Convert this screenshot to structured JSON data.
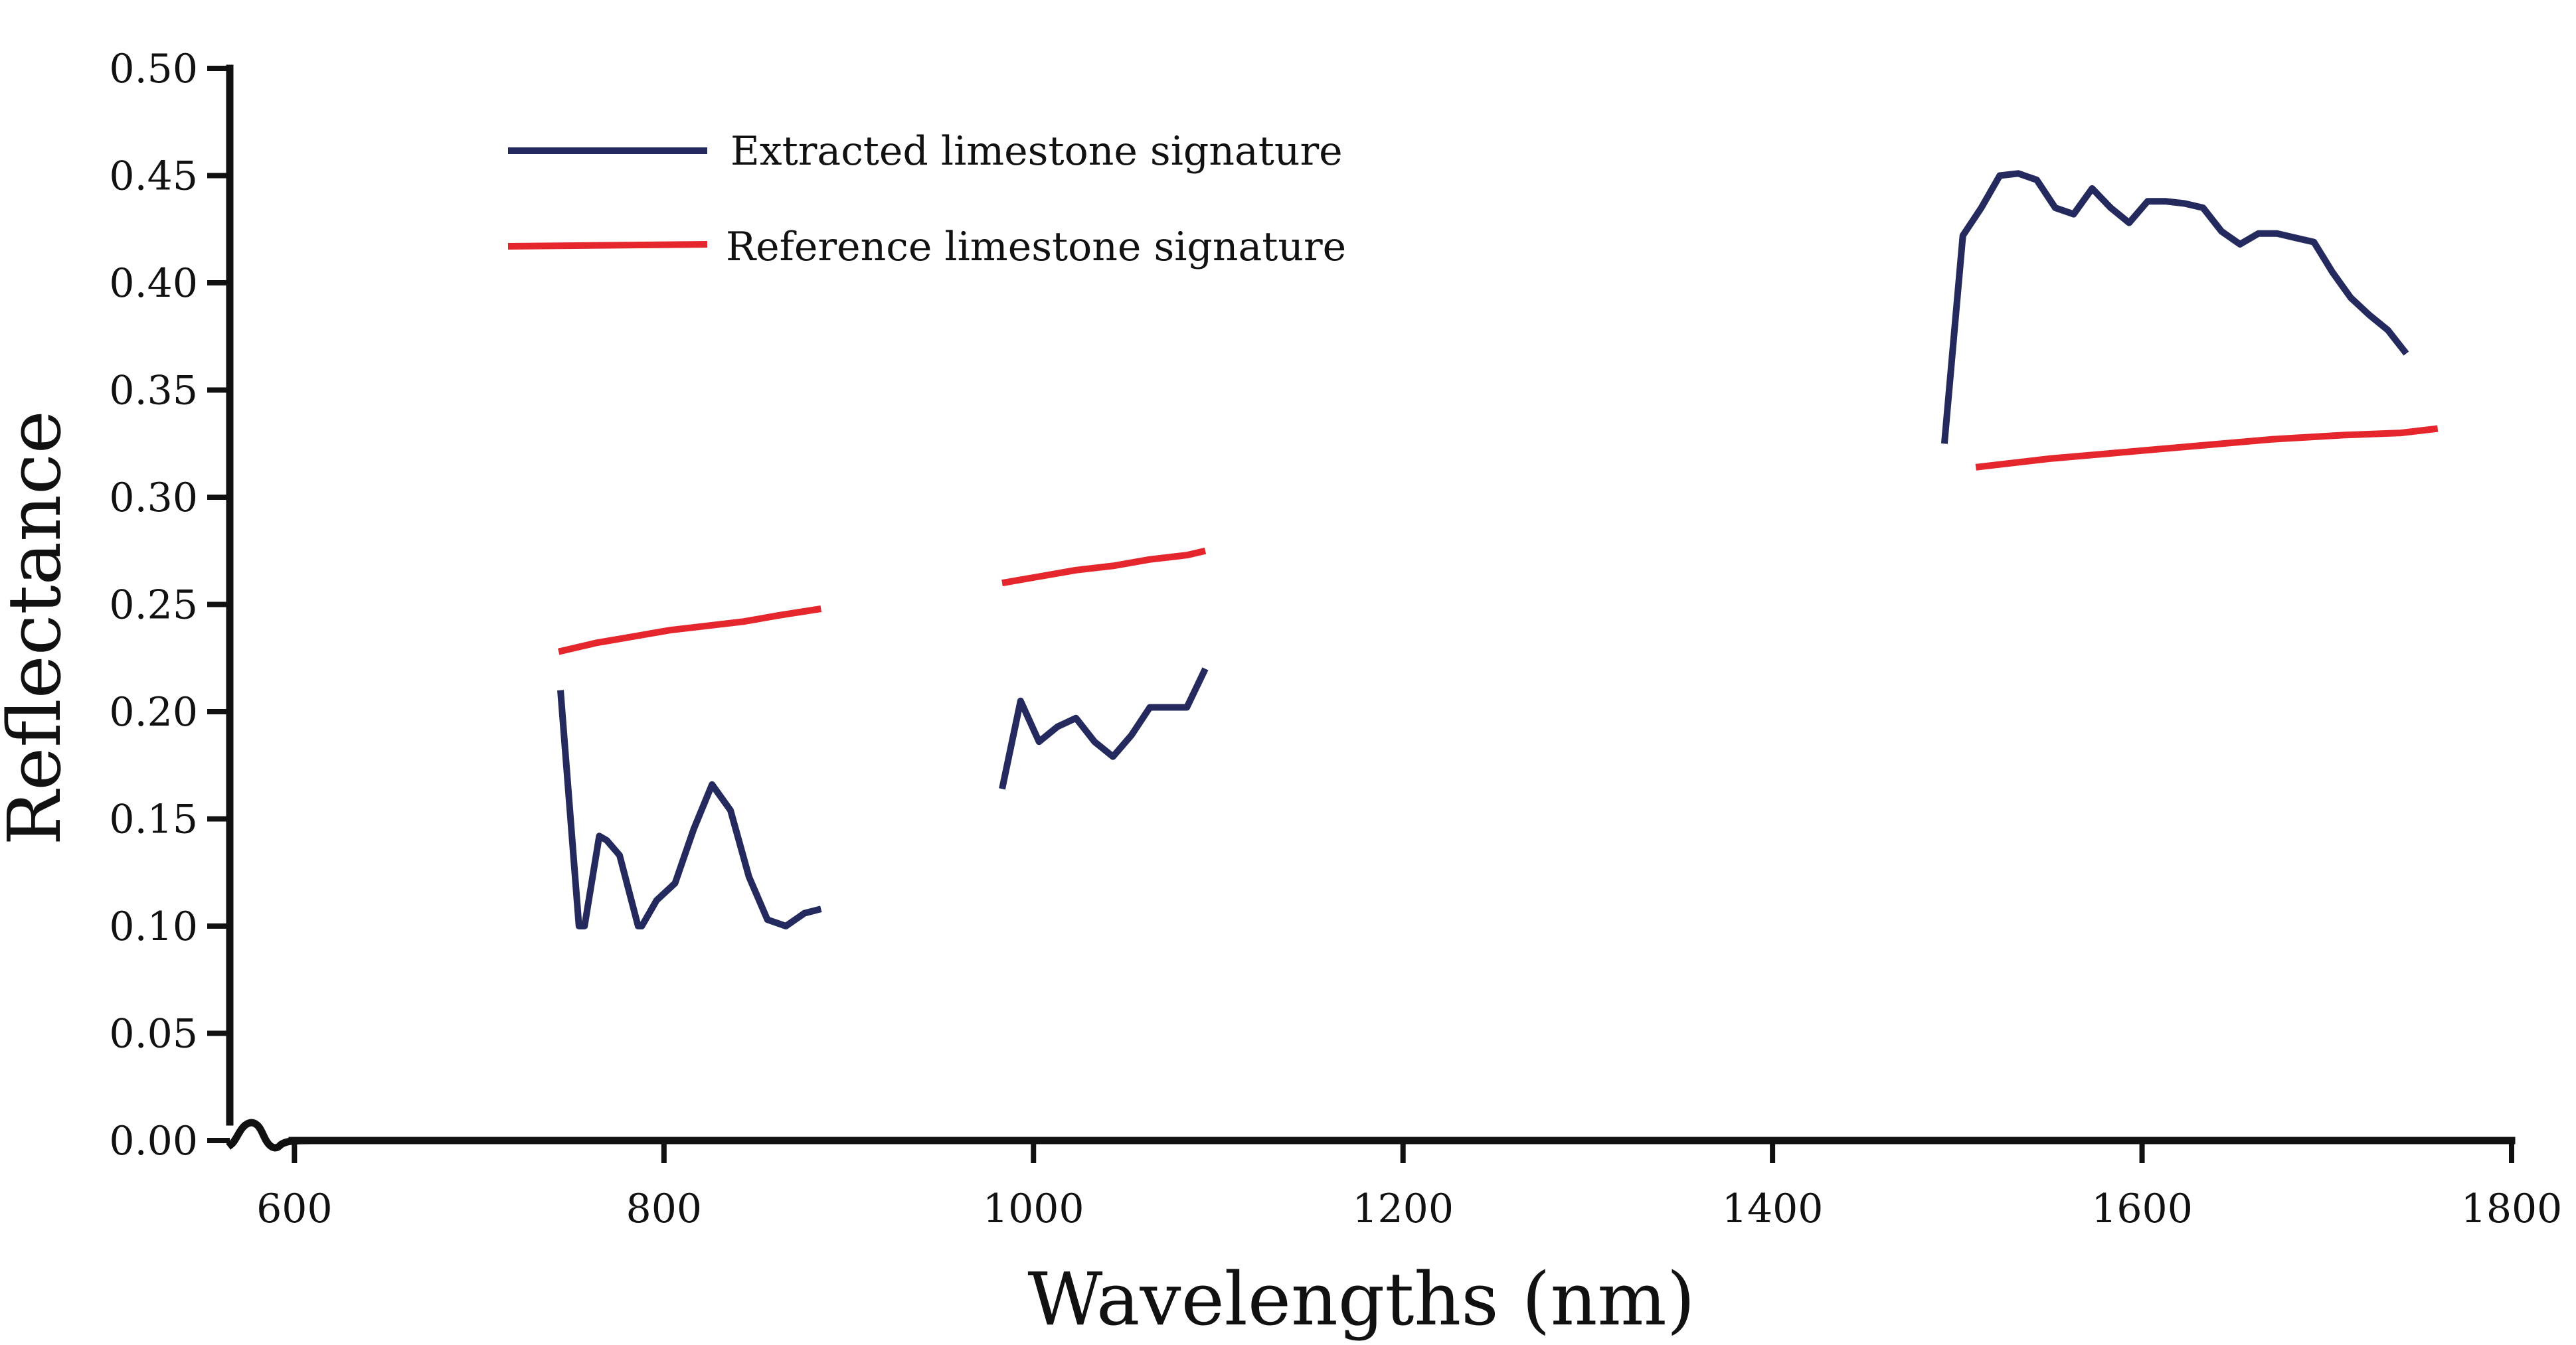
{
  "chart_data": {
    "type": "line",
    "title": "",
    "xlabel": "Wavelengths (nm)",
    "ylabel": "Reflectance",
    "xlim": [
      565,
      1800
    ],
    "ylim": [
      0,
      0.5
    ],
    "x_ticks": [
      600,
      800,
      1000,
      1200,
      1400,
      1600,
      1800
    ],
    "x_tick_labels": [
      "600",
      "800",
      "1000",
      "1200",
      "1400",
      "1600",
      "1800"
    ],
    "y_ticks": [
      0,
      0.05,
      0.1,
      0.15,
      0.2,
      0.25,
      0.3,
      0.35,
      0.4,
      0.45,
      0.5
    ],
    "y_tick_labels": [
      "0.00",
      "0.05",
      "0.10",
      "0.15",
      "0.20",
      "0.25",
      "0.30",
      "0.35",
      "0.40",
      "0.45",
      "0.50"
    ],
    "grid": false,
    "legend_position": "top-left",
    "series": [
      {
        "name": "Extracted limestone signature",
        "color": "#252a5e",
        "segments": [
          [
            [
              744,
              0.21
            ],
            [
              754,
              0.1
            ],
            [
              757,
              0.1
            ],
            [
              765,
              0.142
            ],
            [
              769,
              0.14
            ],
            [
              776,
              0.133
            ],
            [
              786,
              0.1
            ],
            [
              788,
              0.1
            ],
            [
              796,
              0.112
            ],
            [
              806,
              0.12
            ],
            [
              816,
              0.145
            ],
            [
              826,
              0.166
            ],
            [
              836,
              0.154
            ],
            [
              846,
              0.123
            ],
            [
              856,
              0.103
            ],
            [
              866,
              0.1
            ],
            [
              876,
              0.106
            ],
            [
              885,
              0.108
            ]
          ],
          [
            [
              983,
              0.164
            ],
            [
              993,
              0.205
            ],
            [
              1003,
              0.186
            ],
            [
              1013,
              0.193
            ],
            [
              1023,
              0.197
            ],
            [
              1033,
              0.186
            ],
            [
              1043,
              0.179
            ],
            [
              1053,
              0.189
            ],
            [
              1063,
              0.202
            ],
            [
              1073,
              0.202
            ],
            [
              1083,
              0.202
            ],
            [
              1093,
              0.22
            ]
          ],
          [
            [
              1493,
              0.325
            ],
            [
              1503,
              0.422
            ],
            [
              1513,
              0.435
            ],
            [
              1523,
              0.45
            ],
            [
              1533,
              0.451
            ],
            [
              1543,
              0.448
            ],
            [
              1553,
              0.435
            ],
            [
              1563,
              0.432
            ],
            [
              1573,
              0.444
            ],
            [
              1583,
              0.435
            ],
            [
              1593,
              0.428
            ],
            [
              1603,
              0.438
            ],
            [
              1613,
              0.438
            ],
            [
              1623,
              0.437
            ],
            [
              1633,
              0.435
            ],
            [
              1643,
              0.424
            ],
            [
              1653,
              0.418
            ],
            [
              1663,
              0.423
            ],
            [
              1673,
              0.423
            ],
            [
              1683,
              0.421
            ],
            [
              1693,
              0.419
            ],
            [
              1703,
              0.405
            ],
            [
              1713,
              0.393
            ],
            [
              1723,
              0.385
            ],
            [
              1733,
              0.378
            ],
            [
              1743,
              0.367
            ]
          ]
        ]
      },
      {
        "name": "Reference limestone signature",
        "color": "#e5262c",
        "segments": [
          [
            [
              743,
              0.228
            ],
            [
              763,
              0.232
            ],
            [
              783,
              0.235
            ],
            [
              803,
              0.238
            ],
            [
              823,
              0.24
            ],
            [
              843,
              0.242
            ],
            [
              863,
              0.245
            ],
            [
              885,
              0.248
            ]
          ],
          [
            [
              983,
              0.26
            ],
            [
              1003,
              0.263
            ],
            [
              1023,
              0.266
            ],
            [
              1043,
              0.268
            ],
            [
              1063,
              0.271
            ],
            [
              1083,
              0.273
            ],
            [
              1093,
              0.275
            ]
          ],
          [
            [
              1510,
              0.314
            ],
            [
              1550,
              0.318
            ],
            [
              1590,
              0.321
            ],
            [
              1630,
              0.324
            ],
            [
              1670,
              0.327
            ],
            [
              1710,
              0.329
            ],
            [
              1740,
              0.33
            ],
            [
              1760,
              0.332
            ]
          ]
        ]
      }
    ]
  }
}
